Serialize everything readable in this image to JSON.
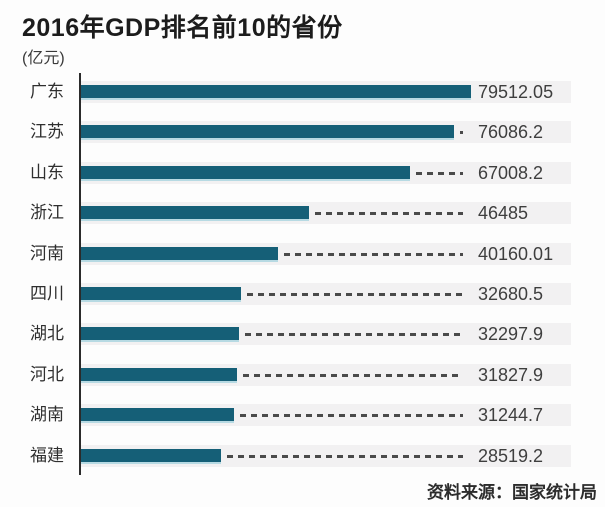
{
  "header": {
    "title": "2016年GDP排名前10的省份",
    "unit_label": "(亿元)"
  },
  "footer": {
    "source": "资料来源：国家统计局"
  },
  "colors": {
    "bar": "#155f77",
    "bar_bottom_edge": "#b7dae3",
    "axis": "#2b2b2b",
    "dash": "#4a4a4a",
    "stripe": "#f2f1f2",
    "background": "#fdfdfd",
    "title_text": "#1c1c1c",
    "value_text": "#3e3e3e"
  },
  "chart_data": {
    "type": "bar",
    "orientation": "horizontal",
    "title": "2016年GDP排名前10的省份",
    "unit": "亿元",
    "categories": [
      "广东",
      "江苏",
      "山东",
      "浙江",
      "河南",
      "四川",
      "湖北",
      "河北",
      "湖南",
      "福建"
    ],
    "values": [
      79512.05,
      76086.2,
      67008.2,
      46485,
      40160.01,
      32680.5,
      32297.9,
      31827.9,
      31244.7,
      28519.2
    ],
    "value_labels": [
      "79512.05",
      "76086.2",
      "67008.2",
      "46485",
      "40160.01",
      "32680.5",
      "32297.9",
      "31827.9",
      "31244.7",
      "28519.2"
    ],
    "xlim": [
      0,
      79512.05
    ],
    "grid": false,
    "legend": "none",
    "value_label_position": "right-of-dashed-leader",
    "source": "资料来源：国家统计局"
  }
}
